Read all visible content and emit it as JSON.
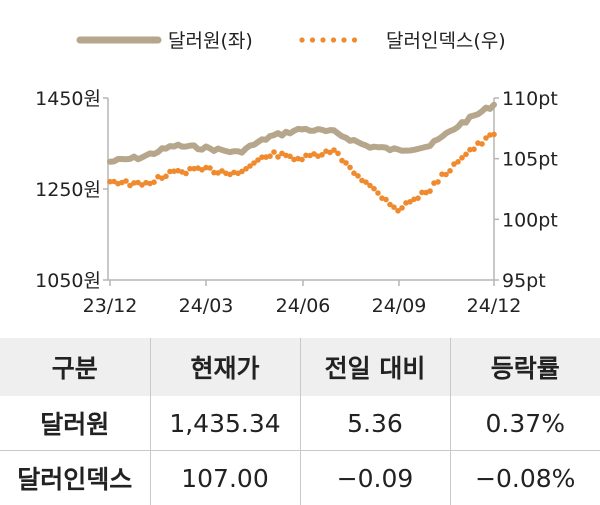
{
  "chart_data": {
    "type": "line",
    "legend": [
      {
        "label": "달러원(좌)",
        "color": "#b5a68c",
        "style": "solid"
      },
      {
        "label": "달러인덱스(우)",
        "color": "#ef8a2e",
        "style": "dotted"
      }
    ],
    "legend_position": "top",
    "x_ticks": [
      "23/12",
      "24/03",
      "24/06",
      "24/09",
      "24/12"
    ],
    "y_left": {
      "ticks": [
        "1450원",
        "1250원",
        "1050원"
      ],
      "range": [
        1050,
        1450
      ]
    },
    "y_right": {
      "ticks": [
        "110pt",
        "105pt",
        "100pt",
        "95pt"
      ],
      "range": [
        95,
        110
      ]
    },
    "grid": false,
    "series": [
      {
        "name": "달러원(좌)",
        "axis": "left",
        "x": [
          "23/12",
          "24/01",
          "24/02",
          "24/03",
          "24/04",
          "24/05",
          "24/06",
          "24/07",
          "24/08",
          "24/09",
          "24/10",
          "24/11",
          "24/12"
        ],
        "values": [
          1310,
          1320,
          1345,
          1340,
          1330,
          1365,
          1382,
          1375,
          1345,
          1335,
          1345,
          1395,
          1435.34
        ]
      },
      {
        "name": "달러인덱스(우)",
        "axis": "right",
        "x": [
          "23/12",
          "24/01",
          "24/02",
          "24/03",
          "24/04",
          "24/05",
          "24/06",
          "24/07",
          "24/08",
          "24/09",
          "24/10",
          "24/11",
          "24/12"
        ],
        "values": [
          103.2,
          102.8,
          103.9,
          104.1,
          103.8,
          105.4,
          105.0,
          105.6,
          103.0,
          100.8,
          102.5,
          105.2,
          107.0
        ]
      }
    ]
  },
  "table": {
    "headers": [
      "구분",
      "현재가",
      "전일 대비",
      "등락률"
    ],
    "rows": [
      {
        "name": "달러원",
        "price": "1,435.34",
        "change": "5.36",
        "rate": "0.37%"
      },
      {
        "name": "달러인덱스",
        "price": "107.00",
        "change": "−0.09",
        "rate": "−0.08%"
      }
    ]
  }
}
